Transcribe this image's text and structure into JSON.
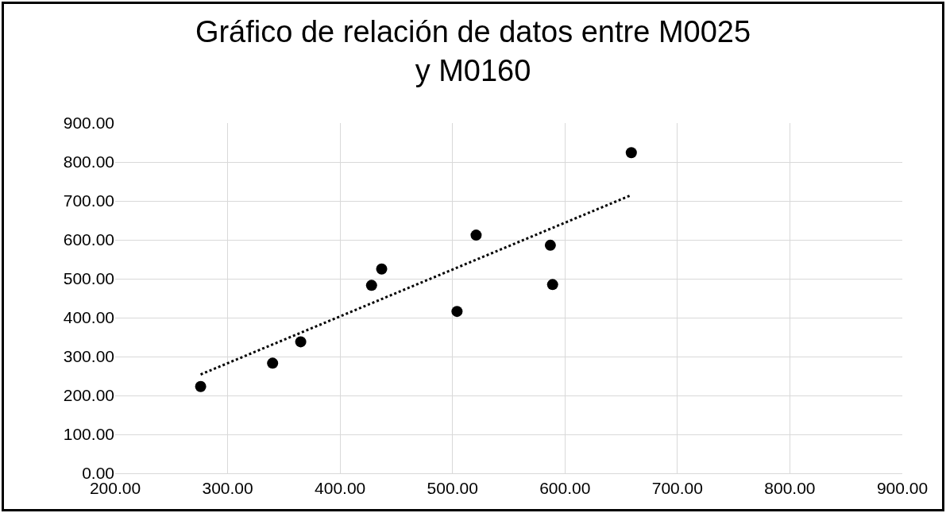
{
  "chart_data": {
    "type": "scatter",
    "title": "Gráfico de relación de datos entre M0025 y M0160",
    "xlim": [
      200,
      900
    ],
    "xticks": [
      {
        "value": 200,
        "label": "200.00"
      },
      {
        "value": 300,
        "label": "300.00"
      },
      {
        "value": 400,
        "label": "400.00"
      },
      {
        "value": 500,
        "label": "500.00"
      },
      {
        "value": 600,
        "label": "600.00"
      },
      {
        "value": 700,
        "label": "700.00"
      },
      {
        "value": 800,
        "label": "800.00"
      },
      {
        "value": 900,
        "label": "900.00"
      }
    ],
    "ylim": [
      0,
      900
    ],
    "yticks": [
      {
        "value": 0,
        "label": "0.00"
      },
      {
        "value": 100,
        "label": "100.00"
      },
      {
        "value": 200,
        "label": "200.00"
      },
      {
        "value": 300,
        "label": "300.00"
      },
      {
        "value": 400,
        "label": "400.00"
      },
      {
        "value": 500,
        "label": "500.00"
      },
      {
        "value": 600,
        "label": "600.00"
      },
      {
        "value": 700,
        "label": "700.00"
      },
      {
        "value": 800,
        "label": "800.00"
      },
      {
        "value": 900,
        "label": "900.00"
      }
    ],
    "grid": true,
    "marker": "circle",
    "series": [
      {
        "color": "#000000",
        "x": [
          276,
          340,
          365,
          428,
          437,
          504,
          521,
          587,
          589,
          659
        ],
        "values": [
          223,
          283,
          338,
          483,
          525,
          416,
          612,
          586,
          485,
          824
        ]
      },
      {
        "type": "line",
        "color": "#000000",
        "line_style": "dotted",
        "marker": "none",
        "x": [
          276,
          659
        ],
        "values": [
          254,
          715
        ]
      }
    ]
  }
}
